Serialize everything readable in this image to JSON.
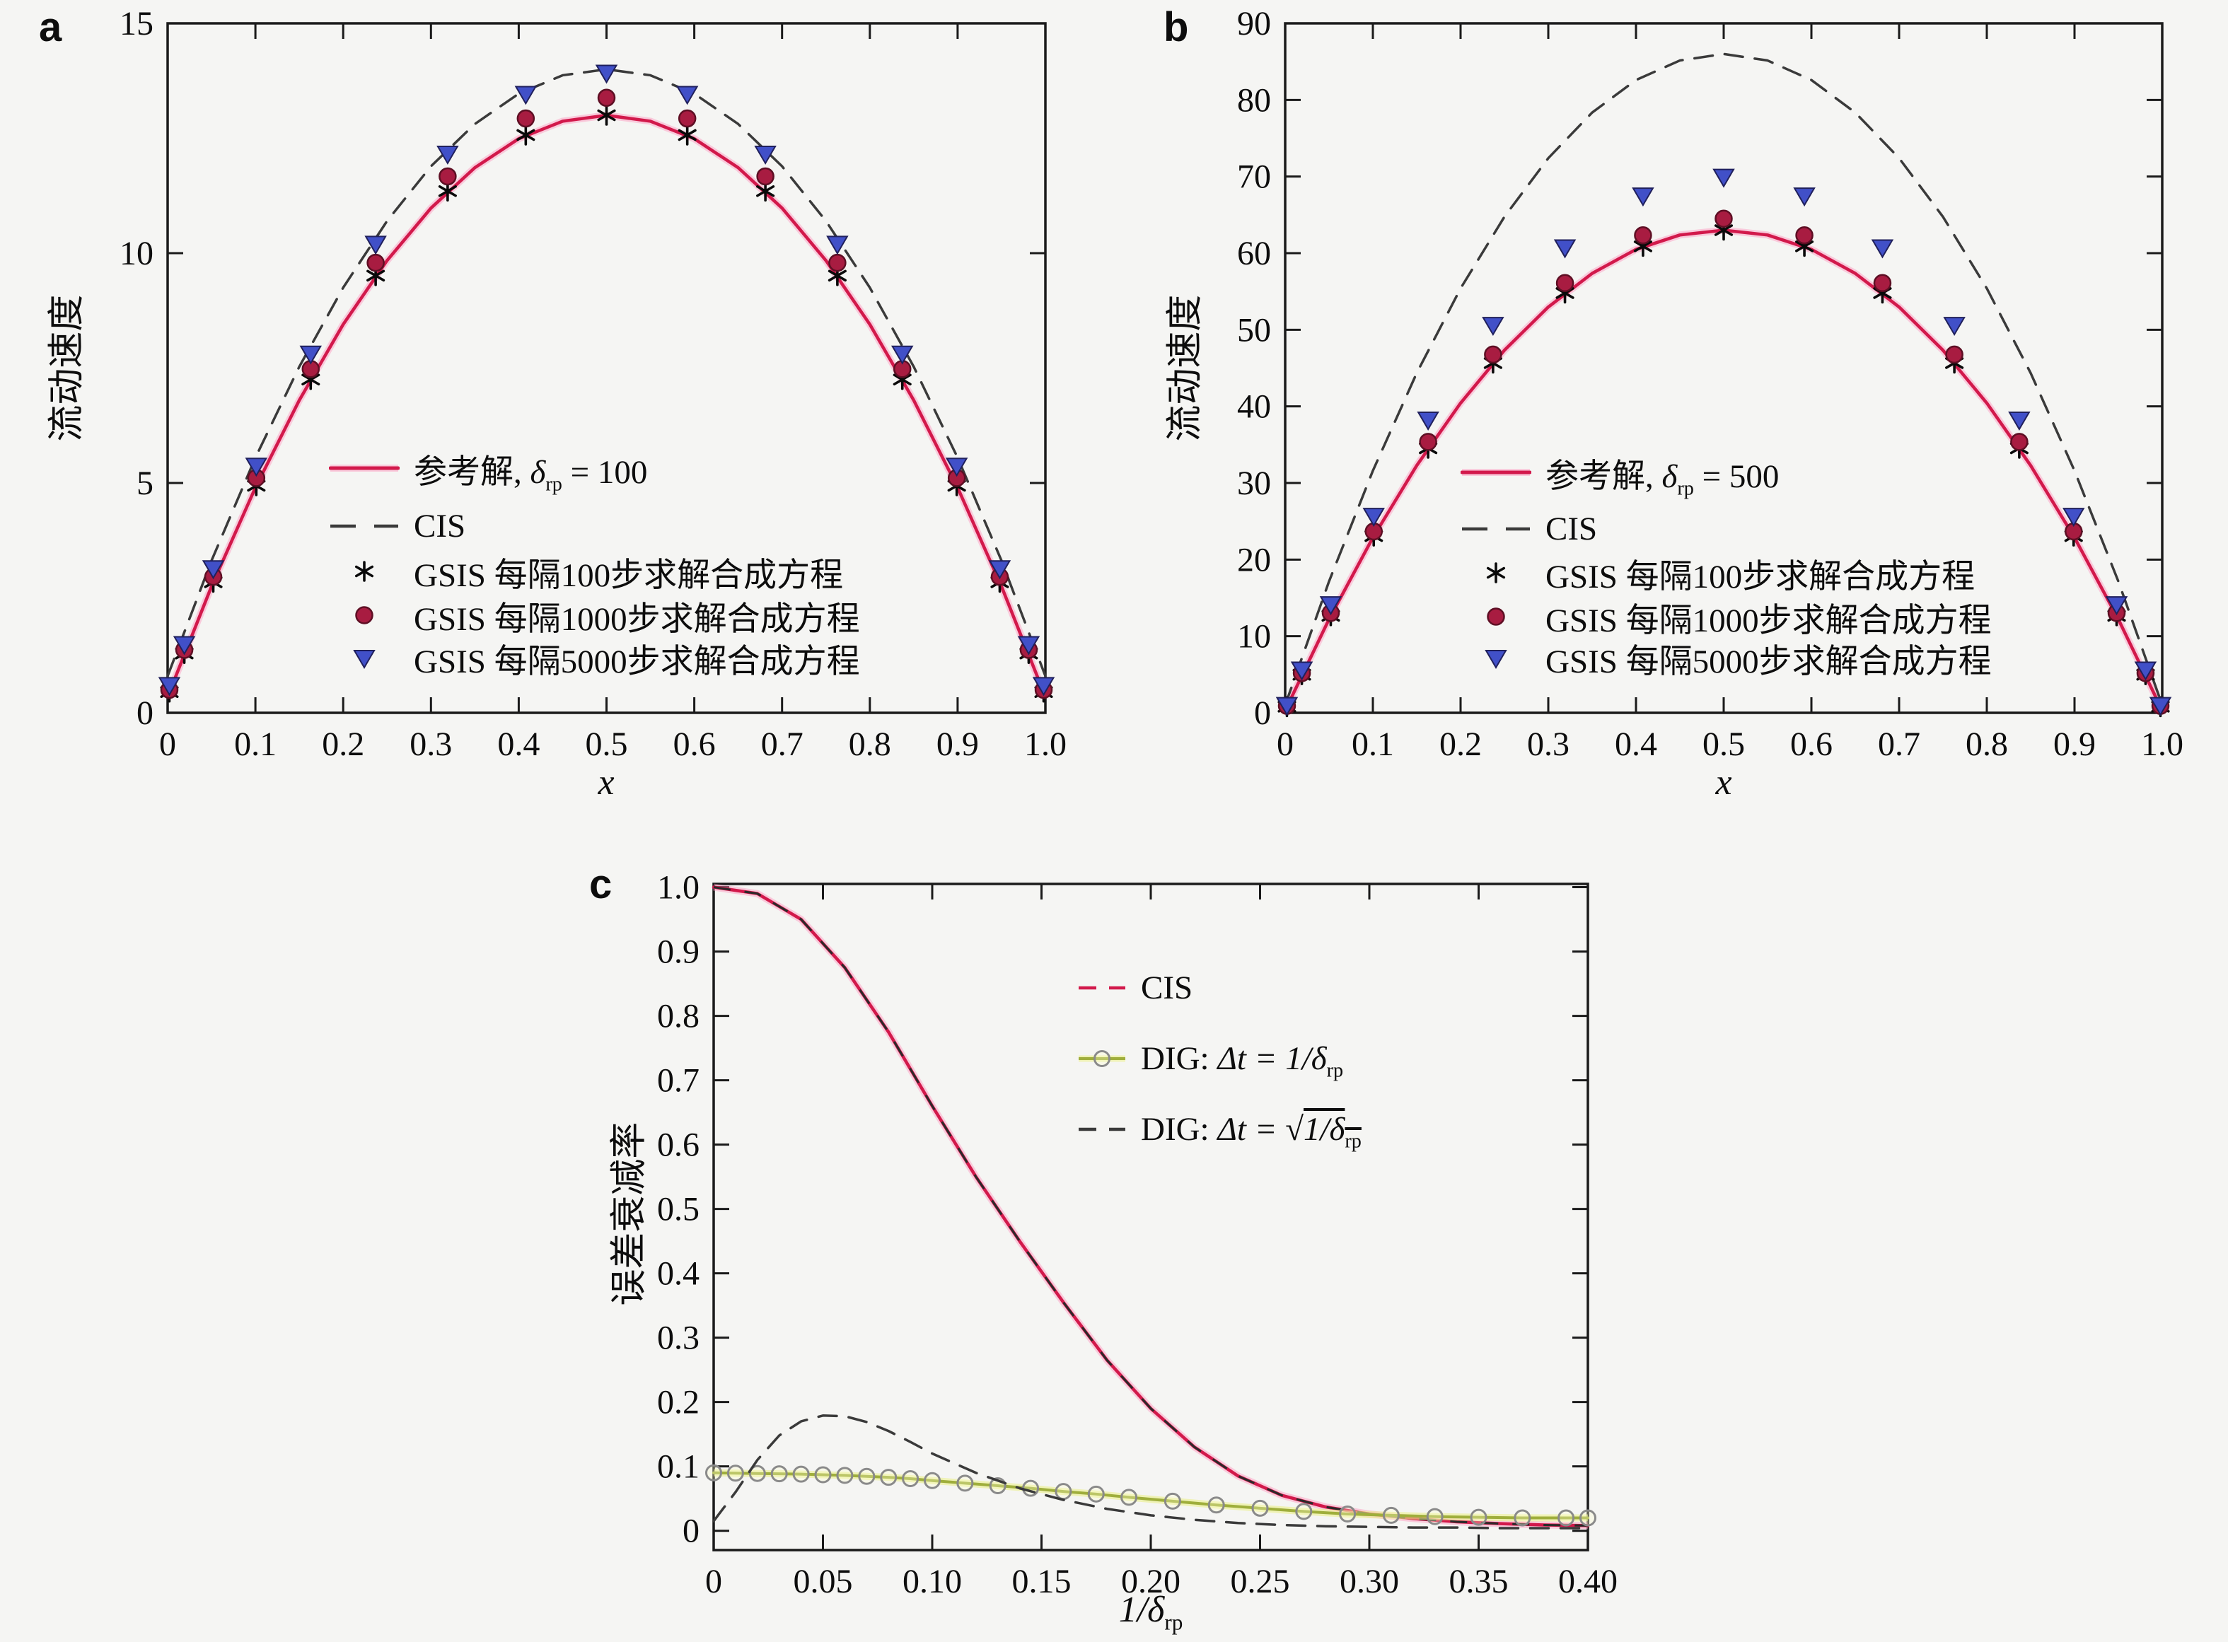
{
  "figure_background": "#f5f5f3",
  "colors": {
    "reference_line": "#d2194b",
    "reference_halo": "rgba(255,150,190,0.45)",
    "cis_dashed": "#3a3a3a",
    "asterisk_marker": "#0a0a0a",
    "circle_marker_fill": "#a81c41",
    "circle_marker_edge": "#5e0f24",
    "triangle_marker_fill": "#4150c8",
    "triangle_marker_edge": "#20205c",
    "dig1_line": "#9fae3c",
    "dig1_halo": "rgba(235,240,140,0.6)",
    "dig1_circle_edge": "#8a8a8a",
    "axis": "#1a1a1a"
  },
  "chart_data": [
    {
      "id": "a",
      "type": "line",
      "panel_label": "a",
      "xlabel": "x",
      "ylabel": "流动速度",
      "xlim": [
        0,
        1.0
      ],
      "ylim": [
        0,
        15
      ],
      "grid": false,
      "legend_position": "inside lower middle",
      "xticks": {
        "values": [
          0,
          0.1,
          0.2,
          0.3,
          0.4,
          0.5,
          0.6,
          0.7,
          0.8,
          0.9,
          1.0
        ],
        "labels": [
          "0",
          "0.1",
          "0.2",
          "0.3",
          "0.4",
          "0.5",
          "0.6",
          "0.7",
          "0.8",
          "0.9",
          "1.0"
        ]
      },
      "yticks": {
        "values": [
          0,
          5,
          10,
          15
        ],
        "labels": [
          "0",
          "5",
          "10",
          "15"
        ]
      },
      "series": [
        {
          "key": "ref",
          "kind": "line",
          "dash": "solid",
          "color": "#d2194b",
          "halo": "rgba(255,150,190,0.45)",
          "width": 4.5,
          "label": {
            "text": "参考解, ",
            "math": "δ",
            "sub": "rp",
            "post": " = 100"
          },
          "legend_sample": "solid-line",
          "x": [
            0,
            0.05,
            0.1,
            0.15,
            0.2,
            0.25,
            0.3,
            0.35,
            0.4,
            0.45,
            0.5,
            0.55,
            0.6,
            0.65,
            0.7,
            0.75,
            0.8,
            0.85,
            0.9,
            0.95,
            1.0
          ],
          "y": [
            0.35,
            2.75,
            4.9,
            6.8,
            8.45,
            9.84,
            10.98,
            11.86,
            12.49,
            12.87,
            13.0,
            12.87,
            12.49,
            11.86,
            10.98,
            9.84,
            8.45,
            6.8,
            4.9,
            2.75,
            0.35
          ]
        },
        {
          "key": "cis",
          "kind": "line",
          "dash": "dashed",
          "color": "#3a3a3a",
          "width": 3.5,
          "label": {
            "text": "CIS"
          },
          "legend_sample": "dashed-line",
          "x": [
            0,
            0.05,
            0.1,
            0.15,
            0.2,
            0.25,
            0.3,
            0.35,
            0.4,
            0.45,
            0.5,
            0.55,
            0.6,
            0.65,
            0.7,
            0.75,
            0.8,
            0.85,
            0.9,
            0.95,
            1.0
          ],
          "y": [
            0.8,
            3.31,
            5.55,
            7.53,
            9.25,
            10.7,
            11.89,
            12.81,
            13.47,
            13.87,
            14.0,
            13.87,
            13.47,
            12.81,
            11.89,
            10.7,
            9.25,
            7.53,
            5.55,
            3.31,
            0.8
          ]
        },
        {
          "key": "gsis100",
          "kind": "scatter",
          "marker": "asterisk",
          "color": "#0a0a0a",
          "label": {
            "text": "GSIS 每隔100步求解合成方程"
          },
          "legend_sample": "marker",
          "x": [
            0.002,
            0.019,
            0.052,
            0.101,
            0.163,
            0.237,
            0.319,
            0.408,
            0.5,
            0.592,
            0.681,
            0.763,
            0.837,
            0.899,
            0.948,
            0.981,
            0.998
          ],
          "y": [
            0.45,
            1.29,
            2.84,
            4.94,
            7.25,
            9.51,
            11.35,
            12.57,
            13.0,
            12.57,
            11.35,
            9.51,
            7.25,
            4.94,
            2.84,
            1.29,
            0.45
          ]
        },
        {
          "key": "gsis1000",
          "kind": "scatter",
          "marker": "circle",
          "color": "#a81c41",
          "edge": "#5e0f24",
          "label": {
            "text": "GSIS 每隔1000步求解合成方程"
          },
          "legend_sample": "marker",
          "x": [
            0.002,
            0.019,
            0.052,
            0.101,
            0.163,
            0.237,
            0.319,
            0.408,
            0.5,
            0.592,
            0.681,
            0.763,
            0.837,
            0.899,
            0.948,
            0.981,
            0.998
          ],
          "y": [
            0.5,
            1.37,
            2.96,
            5.11,
            7.48,
            9.79,
            11.67,
            12.93,
            13.38,
            12.93,
            11.67,
            9.79,
            7.48,
            5.11,
            2.96,
            1.37,
            0.5
          ]
        },
        {
          "key": "gsis5000",
          "kind": "scatter",
          "marker": "triangle-down",
          "color": "#4150c8",
          "edge": "#20205c",
          "label": {
            "text": "GSIS 每隔5000步求解合成方程"
          },
          "legend_sample": "marker",
          "x": [
            0.002,
            0.019,
            0.052,
            0.101,
            0.163,
            0.237,
            0.319,
            0.408,
            0.5,
            0.592,
            0.681,
            0.763,
            0.837,
            0.899,
            0.948,
            0.981,
            0.998
          ],
          "y": [
            0.61,
            1.5,
            3.15,
            5.38,
            7.82,
            10.21,
            12.17,
            13.47,
            13.93,
            13.47,
            12.17,
            10.21,
            7.82,
            5.38,
            3.15,
            1.5,
            0.61
          ]
        }
      ]
    },
    {
      "id": "b",
      "type": "line",
      "panel_label": "b",
      "xlabel": "x",
      "ylabel": "流动速度",
      "xlim": [
        0,
        1.0
      ],
      "ylim": [
        0,
        90
      ],
      "grid": false,
      "legend_position": "inside lower middle",
      "xticks": {
        "values": [
          0,
          0.1,
          0.2,
          0.3,
          0.4,
          0.5,
          0.6,
          0.7,
          0.8,
          0.9,
          1.0
        ],
        "labels": [
          "0",
          "0.1",
          "0.2",
          "0.3",
          "0.4",
          "0.5",
          "0.6",
          "0.7",
          "0.8",
          "0.9",
          "1.0"
        ]
      },
      "yticks": {
        "values": [
          0,
          10,
          20,
          30,
          40,
          50,
          60,
          70,
          80,
          90
        ],
        "labels": [
          "0",
          "10",
          "20",
          "30",
          "40",
          "50",
          "60",
          "70",
          "80",
          "90"
        ]
      },
      "series": [
        {
          "key": "ref",
          "kind": "line",
          "dash": "solid",
          "color": "#d2194b",
          "halo": "rgba(255,150,190,0.45)",
          "width": 4.5,
          "label": {
            "text": "参考解, ",
            "math": "δ",
            "sub": "rp",
            "post": " = 500"
          },
          "legend_sample": "solid-line",
          "x": [
            0,
            0.05,
            0.1,
            0.15,
            0.2,
            0.25,
            0.3,
            0.35,
            0.4,
            0.45,
            0.5,
            0.55,
            0.6,
            0.65,
            0.7,
            0.75,
            0.8,
            0.85,
            0.9,
            0.95,
            1.0
          ],
          "y": [
            0.3,
            12.21,
            22.87,
            32.28,
            40.43,
            47.33,
            52.97,
            57.36,
            60.49,
            62.37,
            63.0,
            62.37,
            60.49,
            57.36,
            52.97,
            47.33,
            40.43,
            32.28,
            22.87,
            12.21,
            0.3
          ]
        },
        {
          "key": "cis",
          "kind": "line",
          "dash": "dashed",
          "color": "#3a3a3a",
          "width": 3.5,
          "label": {
            "text": "CIS"
          },
          "legend_sample": "dashed-line",
          "x": [
            0,
            0.05,
            0.1,
            0.15,
            0.2,
            0.25,
            0.3,
            0.35,
            0.4,
            0.45,
            0.5,
            0.55,
            0.6,
            0.65,
            0.7,
            0.75,
            0.8,
            0.85,
            0.9,
            0.95,
            1.0
          ],
          "y": [
            1.0,
            17.15,
            31.6,
            44.35,
            55.4,
            64.75,
            72.4,
            78.35,
            82.6,
            85.15,
            86.0,
            85.15,
            82.6,
            78.35,
            72.4,
            64.75,
            55.4,
            44.35,
            31.6,
            17.15,
            1.0
          ]
        },
        {
          "key": "gsis100",
          "kind": "scatter",
          "marker": "asterisk",
          "color": "#0a0a0a",
          "label": {
            "text": "GSIS 每隔100步求解合成方程"
          },
          "legend_sample": "marker",
          "x": [
            0.002,
            0.019,
            0.052,
            0.101,
            0.163,
            0.237,
            0.319,
            0.408,
            0.5,
            0.592,
            0.681,
            0.763,
            0.837,
            0.899,
            0.948,
            0.981,
            0.998
          ],
          "y": [
            0.8,
            4.97,
            12.66,
            23.07,
            34.53,
            45.65,
            54.79,
            60.89,
            63.0,
            60.89,
            54.79,
            45.65,
            34.53,
            23.07,
            12.66,
            4.97,
            0.8
          ]
        },
        {
          "key": "gsis1000",
          "kind": "scatter",
          "marker": "circle",
          "color": "#a81c41",
          "edge": "#5e0f24",
          "label": {
            "text": "GSIS 每隔1000步求解合成方程"
          },
          "legend_sample": "marker",
          "x": [
            0.002,
            0.019,
            0.052,
            0.101,
            0.163,
            0.237,
            0.319,
            0.408,
            0.5,
            0.592,
            0.681,
            0.763,
            0.837,
            0.899,
            0.948,
            0.981,
            0.998
          ],
          "y": [
            0.91,
            5.18,
            13.04,
            23.68,
            35.37,
            46.76,
            56.1,
            62.33,
            64.5,
            62.33,
            56.1,
            46.76,
            35.37,
            23.68,
            13.04,
            5.18,
            0.91
          ]
        },
        {
          "key": "gsis5000",
          "kind": "scatter",
          "marker": "triangle-down",
          "color": "#4150c8",
          "edge": "#20205c",
          "label": {
            "text": "GSIS 每隔5000步求解合成方程"
          },
          "legend_sample": "marker",
          "x": [
            0.002,
            0.019,
            0.052,
            0.101,
            0.163,
            0.237,
            0.319,
            0.408,
            0.5,
            0.592,
            0.681,
            0.763,
            0.837,
            0.899,
            0.948,
            0.981,
            0.998
          ],
          "y": [
            1.05,
            5.68,
            14.2,
            25.74,
            38.31,
            50.67,
            60.78,
            67.56,
            70.0,
            67.56,
            60.78,
            50.67,
            38.31,
            25.74,
            14.2,
            5.68,
            1.05
          ]
        }
      ]
    },
    {
      "id": "c",
      "type": "line",
      "panel_label": "c",
      "xlabel_math": "1/δ",
      "xlabel_sub": "rp",
      "ylabel": "误差衰减率",
      "xlim": [
        0,
        0.4
      ],
      "ylim": [
        -0.03,
        1.005
      ],
      "grid": false,
      "legend_position": "inside upper right",
      "xticks": {
        "values": [
          0,
          0.05,
          0.1,
          0.15,
          0.2,
          0.25,
          0.3,
          0.35,
          0.4
        ],
        "labels": [
          "0",
          "0.05",
          "0.10",
          "0.15",
          "0.20",
          "0.25",
          "0.30",
          "0.35",
          "0.40"
        ]
      },
      "yticks": {
        "values": [
          0,
          0.1,
          0.2,
          0.3,
          0.4,
          0.5,
          0.6,
          0.7,
          0.8,
          0.9,
          1.0
        ],
        "labels": [
          "0",
          "0.1",
          "0.2",
          "0.3",
          "0.4",
          "0.5",
          "0.6",
          "0.7",
          "0.8",
          "0.9",
          "1.0"
        ]
      },
      "series": [
        {
          "key": "cis",
          "kind": "line",
          "dash": "dashed-over-solid",
          "color": "#d2194b",
          "halo": "rgba(255,150,190,0.45)",
          "overlay": "#2a2a2a",
          "width": 4.5,
          "label": {
            "text": "CIS"
          },
          "legend_sample": "dashed-line",
          "x": [
            0,
            0.02,
            0.04,
            0.06,
            0.08,
            0.1,
            0.12,
            0.14,
            0.16,
            0.18,
            0.2,
            0.22,
            0.24,
            0.26,
            0.28,
            0.3,
            0.32,
            0.34,
            0.36,
            0.38,
            0.4
          ],
          "y": [
            1.0,
            0.99,
            0.95,
            0.875,
            0.775,
            0.66,
            0.55,
            0.45,
            0.355,
            0.265,
            0.19,
            0.13,
            0.085,
            0.055,
            0.037,
            0.026,
            0.019,
            0.014,
            0.011,
            0.009,
            0.008
          ]
        },
        {
          "key": "dig_dt",
          "kind": "line-marker",
          "dash": "solid",
          "color": "#9fae3c",
          "halo": "rgba(235,240,140,0.6)",
          "marker": "open-circle",
          "edge": "#8a8a8a",
          "width": 4,
          "label": {
            "text": "DIG: ",
            "math": "Δt = 1/δ",
            "sub": "rp"
          },
          "legend_sample": "line-marker",
          "x": [
            0,
            0.01,
            0.02,
            0.03,
            0.04,
            0.05,
            0.06,
            0.07,
            0.08,
            0.09,
            0.1,
            0.115,
            0.13,
            0.145,
            0.16,
            0.175,
            0.19,
            0.21,
            0.23,
            0.25,
            0.27,
            0.29,
            0.31,
            0.33,
            0.35,
            0.37,
            0.39,
            0.4
          ],
          "y": [
            0.09,
            0.0895,
            0.089,
            0.0885,
            0.088,
            0.087,
            0.086,
            0.0845,
            0.083,
            0.081,
            0.078,
            0.074,
            0.07,
            0.066,
            0.061,
            0.057,
            0.052,
            0.046,
            0.04,
            0.035,
            0.03,
            0.026,
            0.024,
            0.022,
            0.021,
            0.02,
            0.02,
            0.02
          ]
        },
        {
          "key": "dig_sqrt",
          "kind": "line",
          "dash": "dashed",
          "color": "#3a3a3a",
          "width": 3.5,
          "label": {
            "text": "DIG: ",
            "math": "Δt = ",
            "sqrt_body": "1/δ",
            "sqrt_sub": "rp"
          },
          "legend_sample": "dashed-line",
          "x": [
            0,
            0.01,
            0.02,
            0.03,
            0.04,
            0.05,
            0.06,
            0.07,
            0.08,
            0.09,
            0.1,
            0.12,
            0.14,
            0.16,
            0.18,
            0.2,
            0.22,
            0.24,
            0.26,
            0.28,
            0.3,
            0.32,
            0.34,
            0.36,
            0.38,
            0.4
          ],
          "y": [
            0.015,
            0.06,
            0.11,
            0.148,
            0.17,
            0.179,
            0.178,
            0.169,
            0.155,
            0.138,
            0.12,
            0.09,
            0.066,
            0.048,
            0.034,
            0.024,
            0.017,
            0.012,
            0.009,
            0.007,
            0.006,
            0.005,
            0.005,
            0.004,
            0.004,
            0.004
          ]
        }
      ]
    }
  ]
}
